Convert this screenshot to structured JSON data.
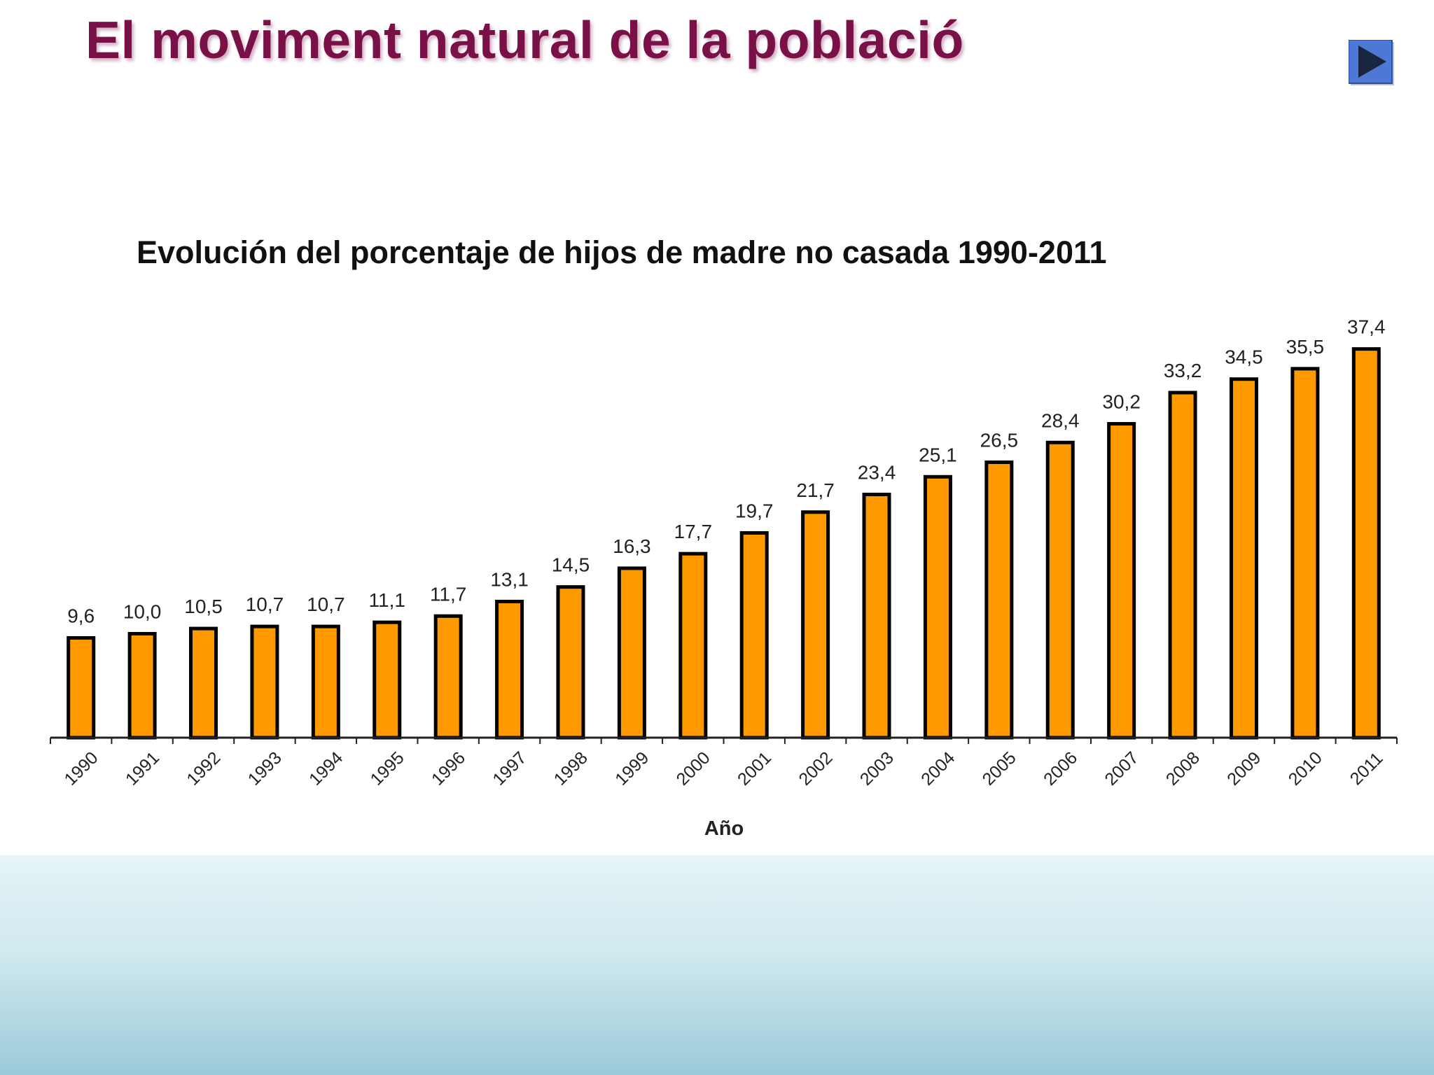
{
  "slide": {
    "title": "El moviment natural de la població",
    "title_color": "#7a1048",
    "next_button_icon": "play-right-triangle-icon",
    "accent_color": "#3a62c6"
  },
  "chart_data": {
    "type": "bar",
    "title": "Evolución del porcentaje de hijos de madre no casada 1990-2011",
    "xlabel": "Año",
    "ylabel": "",
    "ylim": [
      0,
      40
    ],
    "grid": false,
    "bar_color": "#ff9900",
    "bar_edge_color": "#000000",
    "categories": [
      "1990",
      "1991",
      "1992",
      "1993",
      "1994",
      "1995",
      "1996",
      "1997",
      "1998",
      "1999",
      "2000",
      "2001",
      "2002",
      "2003",
      "2004",
      "2005",
      "2006",
      "2007",
      "2008",
      "2009",
      "2010",
      "2011"
    ],
    "values": [
      9.6,
      10.0,
      10.5,
      10.7,
      10.7,
      11.1,
      11.7,
      13.1,
      14.5,
      16.3,
      17.7,
      19.7,
      21.7,
      23.4,
      25.1,
      26.5,
      28.4,
      30.2,
      33.2,
      34.5,
      35.5,
      37.4
    ],
    "value_labels": [
      "9,6",
      "10,0",
      "10,5",
      "10,7",
      "10,7",
      "11,1",
      "11,7",
      "13,1",
      "14,5",
      "16,3",
      "17,7",
      "19,7",
      "21,7",
      "23,4",
      "25,1",
      "26,5",
      "28,4",
      "30,2",
      "33,2",
      "34,5",
      "35,5",
      "37,4"
    ]
  }
}
